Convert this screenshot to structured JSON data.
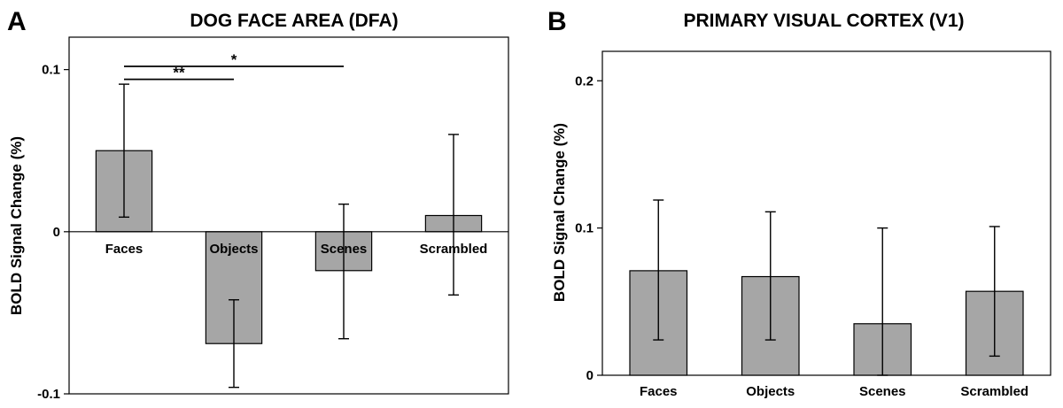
{
  "chart_data": [
    {
      "panel": "A",
      "type": "bar",
      "title": "DOG FACE AREA (DFA)",
      "ylabel": "BOLD Signal Change (%)",
      "categories": [
        "Faces",
        "Objects",
        "Scenes",
        "Scrambled"
      ],
      "values": [
        0.05,
        -0.069,
        -0.024,
        0.01
      ],
      "error_bars": [
        {
          "low": 0.009,
          "high": 0.091
        },
        {
          "low": -0.096,
          "high": -0.042
        },
        {
          "low": -0.066,
          "high": 0.017
        },
        {
          "low": -0.039,
          "high": 0.06
        }
      ],
      "ylim": [
        -0.1,
        0.12
      ],
      "yticks": [
        -0.1,
        0,
        0.1
      ],
      "ytick_labels": [
        "-0.1",
        "0",
        "0.1"
      ],
      "bar_color": "#a6a6a6",
      "grid": false,
      "significance": [
        {
          "from": "Faces",
          "to": "Objects",
          "y": 0.094,
          "label": "**"
        },
        {
          "from": "Faces",
          "to": "Scenes",
          "y": 0.102,
          "label": "*"
        }
      ]
    },
    {
      "panel": "B",
      "type": "bar",
      "title": "PRIMARY VISUAL CORTEX (V1)",
      "ylabel": "BOLD Signal Change (%)",
      "categories": [
        "Faces",
        "Objects",
        "Scenes",
        "Scrambled"
      ],
      "values": [
        0.071,
        0.067,
        0.035,
        0.057
      ],
      "error_bars": [
        {
          "low": 0.024,
          "high": 0.119
        },
        {
          "low": 0.024,
          "high": 0.111
        },
        {
          "low": 0.0,
          "high": 0.1
        },
        {
          "low": 0.013,
          "high": 0.101
        }
      ],
      "ylim": [
        0,
        0.22
      ],
      "yticks": [
        0,
        0.1,
        0.2
      ],
      "ytick_labels": [
        "0",
        "0.1",
        "0.2"
      ],
      "bar_color": "#a6a6a6",
      "grid": false,
      "significance": []
    }
  ]
}
